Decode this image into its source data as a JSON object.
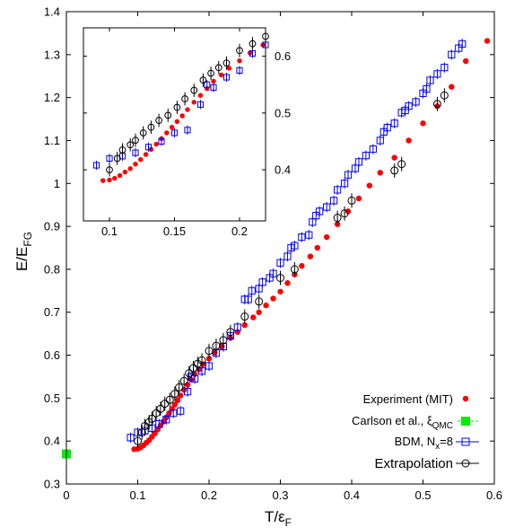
{
  "chart_data": {
    "type": "scatter",
    "xlabel": "T/ε",
    "xlabel_sub": "F",
    "ylabel": "E/E",
    "ylabel_sub": "FG",
    "xlim": [
      0,
      0.6
    ],
    "ylim": [
      0.3,
      1.4
    ],
    "x_ticks": [
      "0",
      "0.1",
      "0.2",
      "0.3",
      "0.4",
      "0.5",
      "0.6"
    ],
    "y_ticks": [
      "0.3",
      "0.4",
      "0.5",
      "0.6",
      "0.7",
      "0.8",
      "0.9",
      "1",
      "1.1",
      "1.2",
      "1.3",
      "1.4"
    ],
    "x_tick_values": [
      0,
      0.1,
      0.2,
      0.3,
      0.4,
      0.5,
      0.6
    ],
    "y_tick_values": [
      0.3,
      0.4,
      0.5,
      0.6,
      0.7,
      0.8,
      0.9,
      1.0,
      1.1,
      1.2,
      1.3,
      1.4
    ],
    "legend_position": "bottom-right",
    "series": [
      {
        "name": "Experiment (MIT)",
        "color": "#ff0000",
        "marker": "filled-circle",
        "points": [
          [
            0.095,
            0.381
          ],
          [
            0.1,
            0.382
          ],
          [
            0.104,
            0.385
          ],
          [
            0.108,
            0.39
          ],
          [
            0.112,
            0.396
          ],
          [
            0.116,
            0.402
          ],
          [
            0.12,
            0.41
          ],
          [
            0.124,
            0.418
          ],
          [
            0.128,
            0.427
          ],
          [
            0.132,
            0.436
          ],
          [
            0.136,
            0.445
          ],
          [
            0.14,
            0.455
          ],
          [
            0.144,
            0.465
          ],
          [
            0.148,
            0.475
          ],
          [
            0.152,
            0.485
          ],
          [
            0.156,
            0.495
          ],
          [
            0.16,
            0.506
          ],
          [
            0.165,
            0.519
          ],
          [
            0.17,
            0.531
          ],
          [
            0.175,
            0.543
          ],
          [
            0.18,
            0.556
          ],
          [
            0.186,
            0.567
          ],
          [
            0.192,
            0.579
          ],
          [
            0.2,
            0.592
          ],
          [
            0.208,
            0.606
          ],
          [
            0.218,
            0.62
          ],
          [
            0.23,
            0.64
          ],
          [
            0.24,
            0.654
          ],
          [
            0.25,
            0.67
          ],
          [
            0.262,
            0.688
          ],
          [
            0.27,
            0.7
          ],
          [
            0.28,
            0.716
          ],
          [
            0.29,
            0.732
          ],
          [
            0.3,
            0.748
          ],
          [
            0.31,
            0.768
          ],
          [
            0.32,
            0.788
          ],
          [
            0.33,
            0.808
          ],
          [
            0.342,
            0.83
          ],
          [
            0.352,
            0.85
          ],
          [
            0.365,
            0.875
          ],
          [
            0.38,
            0.905
          ],
          [
            0.395,
            0.935
          ],
          [
            0.41,
            0.965
          ],
          [
            0.425,
            0.995
          ],
          [
            0.44,
            1.025
          ],
          [
            0.46,
            1.06
          ],
          [
            0.48,
            1.1
          ],
          [
            0.5,
            1.14
          ],
          [
            0.52,
            1.18
          ],
          [
            0.54,
            1.225
          ],
          [
            0.56,
            1.285
          ],
          [
            0.59,
            1.332
          ]
        ]
      },
      {
        "name": "Carlson et al., ξ",
        "name_sub": "QMC",
        "color": "#00ee00",
        "marker": "filled-square",
        "points": [
          [
            0.0,
            0.37
          ]
        ]
      },
      {
        "name": "BDM, N",
        "name_sub": "x",
        "name_suffix": "=8",
        "color": "#0000ff",
        "marker": "open-square",
        "points": [
          [
            0.09,
            0.408
          ],
          [
            0.1,
            0.42
          ],
          [
            0.11,
            0.424
          ],
          [
            0.12,
            0.43
          ],
          [
            0.13,
            0.44
          ],
          [
            0.14,
            0.45
          ],
          [
            0.15,
            0.465
          ],
          [
            0.16,
            0.47
          ],
          [
            0.17,
            0.515
          ],
          [
            0.175,
            0.55
          ],
          [
            0.18,
            0.545
          ],
          [
            0.19,
            0.563
          ],
          [
            0.2,
            0.575
          ],
          [
            0.21,
            0.605
          ],
          [
            0.22,
            0.62
          ],
          [
            0.23,
            0.645
          ],
          [
            0.24,
            0.665
          ],
          [
            0.25,
            0.73
          ],
          [
            0.255,
            0.73
          ],
          [
            0.26,
            0.75
          ],
          [
            0.27,
            0.755
          ],
          [
            0.275,
            0.77
          ],
          [
            0.285,
            0.78
          ],
          [
            0.29,
            0.79
          ],
          [
            0.3,
            0.815
          ],
          [
            0.31,
            0.83
          ],
          [
            0.315,
            0.85
          ],
          [
            0.32,
            0.855
          ],
          [
            0.33,
            0.875
          ],
          [
            0.34,
            0.88
          ],
          [
            0.345,
            0.91
          ],
          [
            0.35,
            0.925
          ],
          [
            0.355,
            0.935
          ],
          [
            0.365,
            0.945
          ],
          [
            0.375,
            0.96
          ],
          [
            0.38,
            0.985
          ],
          [
            0.39,
            1.0
          ],
          [
            0.395,
            1.02
          ],
          [
            0.405,
            1.035
          ],
          [
            0.41,
            1.05
          ],
          [
            0.42,
            1.065
          ],
          [
            0.43,
            1.08
          ],
          [
            0.44,
            1.1
          ],
          [
            0.445,
            1.12
          ],
          [
            0.45,
            1.13
          ],
          [
            0.46,
            1.14
          ],
          [
            0.47,
            1.165
          ],
          [
            0.475,
            1.17
          ],
          [
            0.48,
            1.18
          ],
          [
            0.49,
            1.19
          ],
          [
            0.5,
            1.21
          ],
          [
            0.505,
            1.22
          ],
          [
            0.51,
            1.24
          ],
          [
            0.52,
            1.255
          ],
          [
            0.53,
            1.27
          ],
          [
            0.54,
            1.3
          ],
          [
            0.55,
            1.315
          ],
          [
            0.555,
            1.325
          ]
        ]
      },
      {
        "name": "Extrapolation",
        "color": "#000000",
        "marker": "open-circle",
        "points": [
          [
            0.1,
            0.4
          ],
          [
            0.106,
            0.42
          ],
          [
            0.11,
            0.435
          ],
          [
            0.116,
            0.444
          ],
          [
            0.12,
            0.452
          ],
          [
            0.126,
            0.465
          ],
          [
            0.132,
            0.475
          ],
          [
            0.138,
            0.487
          ],
          [
            0.145,
            0.496
          ],
          [
            0.152,
            0.51
          ],
          [
            0.158,
            0.525
          ],
          [
            0.165,
            0.54
          ],
          [
            0.172,
            0.558
          ],
          [
            0.178,
            0.57
          ],
          [
            0.184,
            0.58
          ],
          [
            0.19,
            0.588
          ],
          [
            0.2,
            0.61
          ],
          [
            0.21,
            0.622
          ],
          [
            0.22,
            0.635
          ],
          [
            0.23,
            0.654
          ],
          [
            0.25,
            0.69
          ],
          [
            0.27,
            0.725
          ],
          [
            0.3,
            0.78
          ],
          [
            0.32,
            0.8
          ],
          [
            0.38,
            0.92
          ],
          [
            0.39,
            0.93
          ],
          [
            0.4,
            0.96
          ],
          [
            0.46,
            1.03
          ],
          [
            0.47,
            1.045
          ],
          [
            0.52,
            1.185
          ],
          [
            0.53,
            1.205
          ]
        ]
      }
    ],
    "inset": {
      "xlim": [
        0.08,
        0.22
      ],
      "ylim": [
        0.31,
        0.65
      ],
      "x_ticks": [
        "0.1",
        "0.15",
        "0.2"
      ],
      "y_ticks": [
        "0.4",
        "0.5",
        "0.6"
      ],
      "x_tick_values": [
        0.1,
        0.15,
        0.2
      ],
      "y_tick_values": [
        0.4,
        0.5,
        0.6
      ]
    }
  }
}
